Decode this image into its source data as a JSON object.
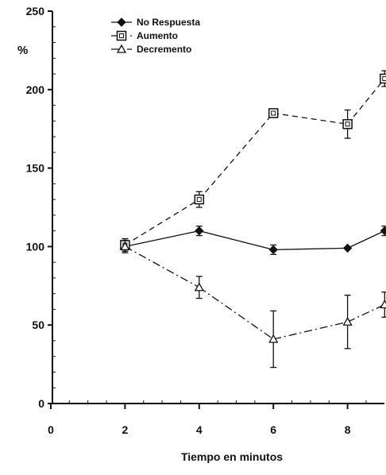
{
  "chart_data": {
    "type": "line",
    "ylabel": "%",
    "xlabel": "Tiempo en minutos",
    "xlim": [
      0,
      9
    ],
    "ylim": [
      0,
      250
    ],
    "x_ticks": [
      0,
      2,
      4,
      6,
      8
    ],
    "y_ticks": [
      0,
      50,
      100,
      150,
      200,
      250
    ],
    "legend_position": "top-left",
    "grid": false,
    "series": [
      {
        "name": "No Respuesta",
        "marker": "diamond-filled",
        "line_style": "solid",
        "x": [
          2,
          4,
          6,
          8,
          9
        ],
        "y": [
          100,
          110,
          98,
          99,
          110
        ],
        "err": [
          3,
          3,
          3,
          0,
          3
        ]
      },
      {
        "name": "Aumento",
        "marker": "square-open",
        "line_style": "dashed",
        "x": [
          2,
          4,
          6,
          8,
          9
        ],
        "y": [
          101,
          130,
          185,
          178,
          207
        ],
        "err": [
          4,
          5,
          0,
          9,
          5
        ]
      },
      {
        "name": "Decremento",
        "marker": "triangle-open",
        "line_style": "dash-dot",
        "x": [
          2,
          4,
          6,
          8,
          9
        ],
        "y": [
          100,
          74,
          41,
          52,
          63
        ],
        "err": [
          4,
          7,
          18,
          17,
          8
        ]
      }
    ]
  }
}
